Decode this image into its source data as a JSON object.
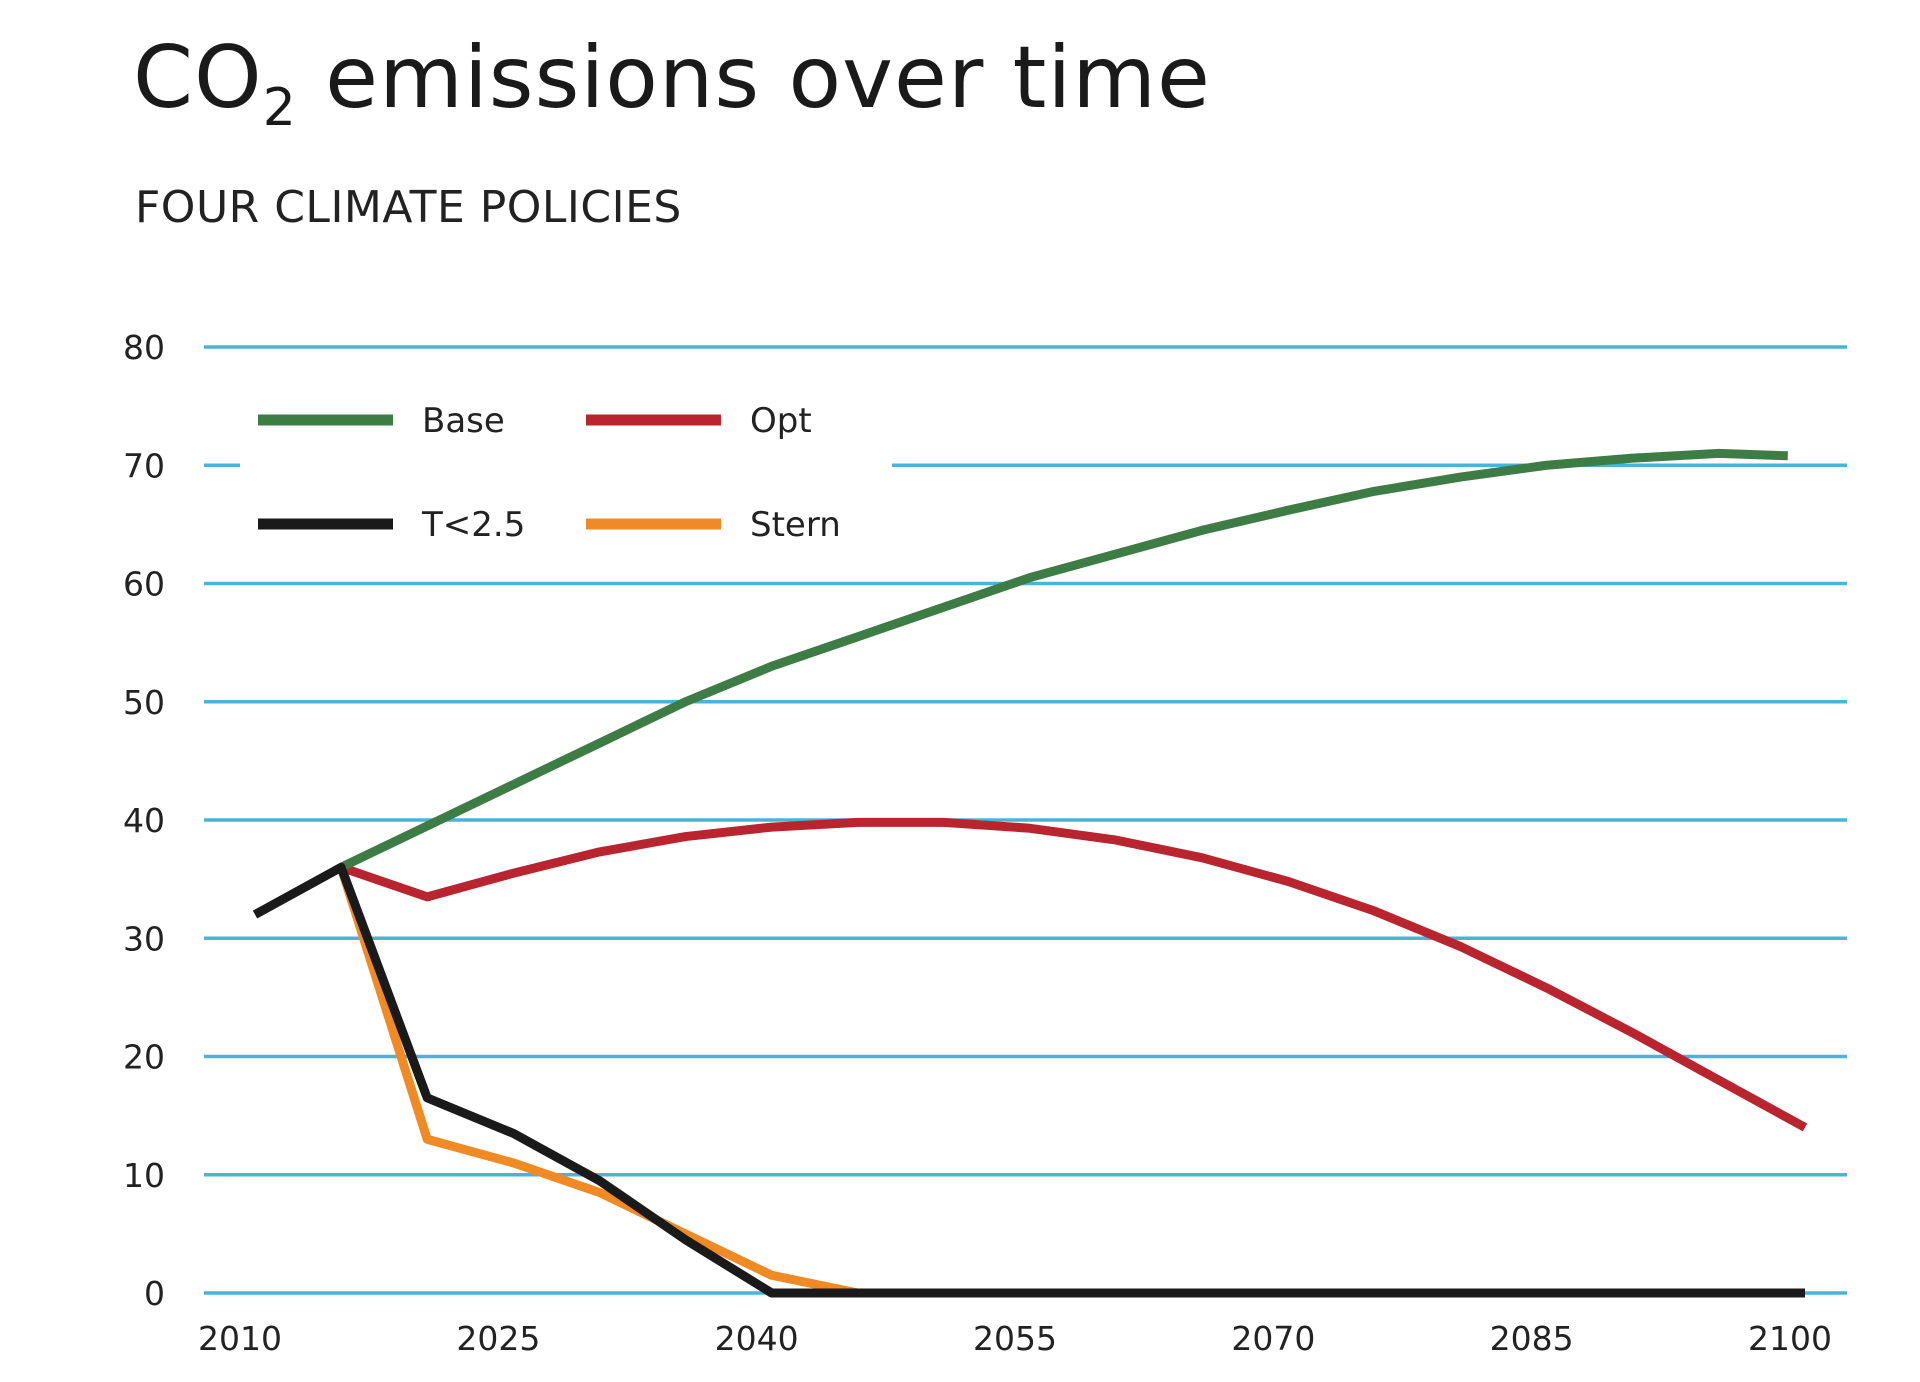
{
  "title_main": "CO",
  "title_sub": "2",
  "title_rest": " emissions over time",
  "subtitle": "FOUR CLIMATE POLICIES",
  "colors": {
    "grid": "#4ab3d8",
    "Base": "#3d7d45",
    "Opt": "#b8252f",
    "T<2.5": "#1a1a1a",
    "Stern": "#ef8a25"
  },
  "chart_data": {
    "type": "line",
    "title": "CO2 emissions over time",
    "subtitle": "FOUR CLIMATE POLICIES",
    "xlabel": "",
    "ylabel": "",
    "xlim": [
      2010,
      2100
    ],
    "ylim": [
      0,
      80
    ],
    "x_ticks": [
      "2010",
      "2025",
      "2040",
      "2055",
      "2070",
      "2085",
      "2100"
    ],
    "y_ticks": [
      "0",
      "10",
      "20",
      "30",
      "40",
      "50",
      "60",
      "70",
      "80"
    ],
    "grid": "horizontal",
    "legend_position": "top-left",
    "series": [
      {
        "name": "Base",
        "x": [
          2015,
          2020,
          2025,
          2030,
          2035,
          2040,
          2045,
          2050,
          2055,
          2060,
          2065,
          2070,
          2075,
          2080,
          2085,
          2090,
          2095,
          2099
        ],
        "values": [
          36,
          39.5,
          43,
          46.5,
          50,
          53,
          55.5,
          58,
          60.5,
          62.5,
          64.5,
          66.2,
          67.8,
          69,
          70,
          70.6,
          71,
          70.8
        ]
      },
      {
        "name": "Opt",
        "x": [
          2015,
          2020,
          2025,
          2030,
          2035,
          2040,
          2045,
          2050,
          2055,
          2060,
          2065,
          2070,
          2075,
          2080,
          2085,
          2090,
          2095,
          2100
        ],
        "values": [
          36,
          33.5,
          35.5,
          37.3,
          38.6,
          39.4,
          39.8,
          39.8,
          39.3,
          38.3,
          36.8,
          34.8,
          32.3,
          29.3,
          25.8,
          22,
          18,
          14
        ]
      },
      {
        "name": "Stern",
        "x": [
          2015,
          2020,
          2025,
          2030,
          2035,
          2040,
          2045,
          2100
        ],
        "values": [
          36,
          13,
          11,
          8.5,
          5,
          1.5,
          0,
          0
        ]
      },
      {
        "name": "T<2.5",
        "x": [
          2010,
          2015,
          2020,
          2025,
          2030,
          2035,
          2040,
          2100
        ],
        "values": [
          32,
          36,
          16.5,
          13.5,
          9.5,
          4.5,
          0,
          0
        ]
      }
    ]
  }
}
